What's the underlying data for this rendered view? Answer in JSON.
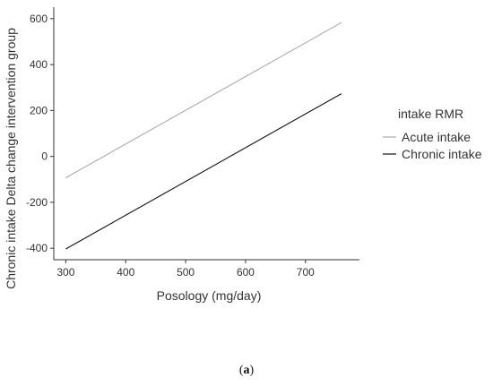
{
  "chart_data": {
    "type": "line",
    "title": "",
    "xlabel": "Posology (mg/day)",
    "ylabel": "Chronic intake Delta change intervention group",
    "xlim": [
      280,
      790
    ],
    "ylim": [
      -450,
      650
    ],
    "x_ticks": [
      300,
      400,
      500,
      600,
      700
    ],
    "y_ticks": [
      -400,
      -200,
      0,
      200,
      400,
      600
    ],
    "grid": false,
    "legend": {
      "title": "intake RMR",
      "position": "right"
    },
    "series": [
      {
        "name": "Acute intake",
        "color": "#aaaaaa",
        "x": [
          300,
          760
        ],
        "y": [
          -93,
          583
        ]
      },
      {
        "name": "Chronic intake",
        "color": "#111111",
        "x": [
          300,
          760
        ],
        "y": [
          -403,
          273
        ]
      }
    ]
  },
  "caption": {
    "open": "(",
    "label": "a",
    "close": ")"
  }
}
